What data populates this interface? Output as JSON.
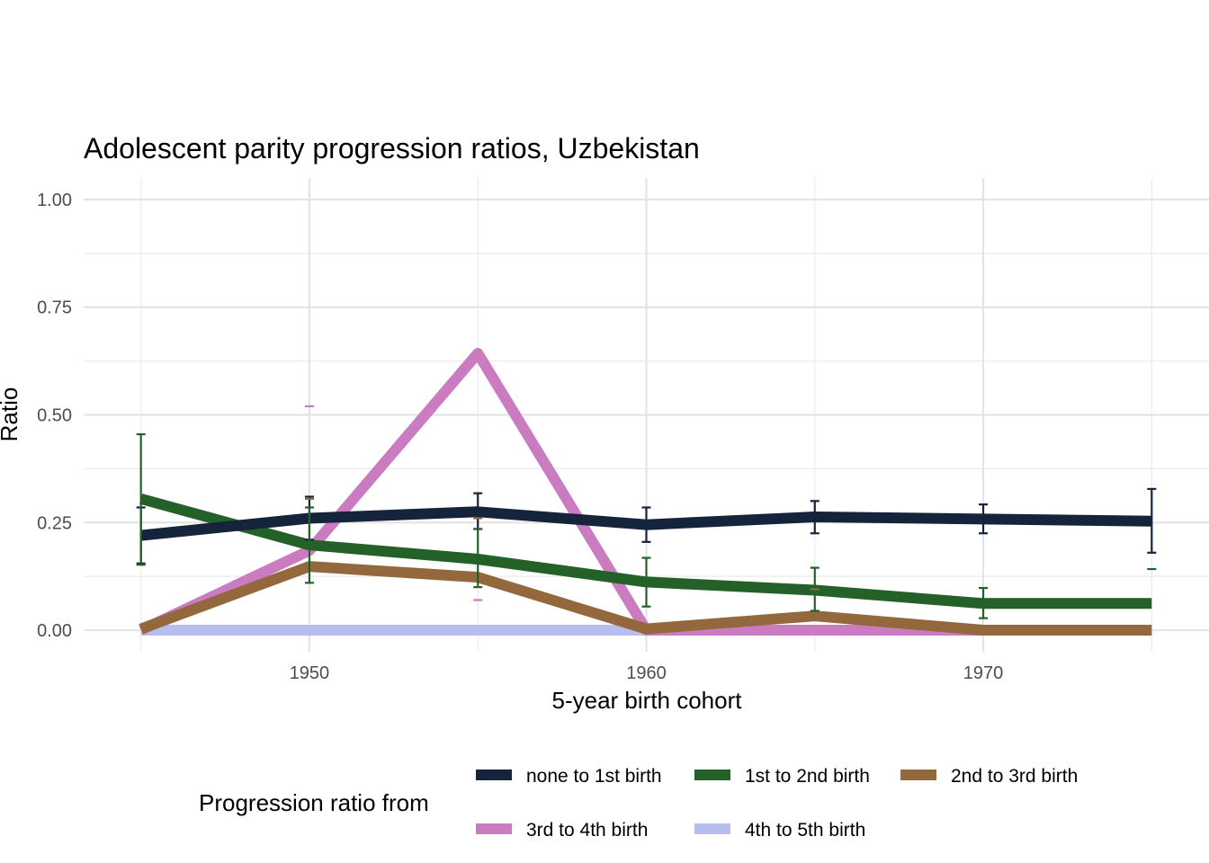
{
  "chart_data": {
    "type": "line",
    "title": "Adolescent parity progression ratios,  Uzbekistan",
    "xlabel": "5-year birth cohort",
    "ylabel": "Ratio",
    "xlim": [
      1943.3,
      1976.7
    ],
    "ylim": [
      -0.05,
      1.05
    ],
    "x_ticks": [
      1950,
      1960,
      1970
    ],
    "x_tick_labels": [
      "1950",
      "1960",
      "1970"
    ],
    "y_ticks": [
      0,
      0.25,
      0.5,
      0.75,
      1.0
    ],
    "y_tick_labels": [
      "0.00",
      "0.25",
      "0.50",
      "0.75",
      "1.00"
    ],
    "x": [
      1945,
      1950,
      1955,
      1960,
      1965,
      1970,
      1975
    ],
    "grid": true,
    "legend": {
      "title": "Progression ratio from",
      "position": "bottom"
    },
    "series": [
      {
        "name": "none to 1st birth",
        "color": "#15233b",
        "values": [
          0.22,
          0.26,
          0.275,
          0.245,
          0.263,
          0.258,
          0.253
        ],
        "lower": [
          0.155,
          0.21,
          0.235,
          0.205,
          0.225,
          0.225,
          0.18
        ],
        "upper": [
          0.285,
          0.31,
          0.318,
          0.285,
          0.3,
          0.292,
          0.328
        ]
      },
      {
        "name": "1st to 2nd birth",
        "color": "#246129",
        "values": [
          0.305,
          0.198,
          0.165,
          0.112,
          0.093,
          0.062,
          0.062
        ],
        "lower": [
          0.152,
          0.11,
          0.1,
          0.055,
          0.045,
          0.028,
          null
        ],
        "upper": [
          0.455,
          0.285,
          0.235,
          0.168,
          0.145,
          0.098,
          0.142
        ]
      },
      {
        "name": "2nd to 3rd birth",
        "color": "#93683d",
        "values": [
          0.003,
          0.148,
          0.123,
          0.003,
          0.033,
          0.0,
          0.0
        ],
        "lower": [
          null,
          null,
          null,
          null,
          null,
          null,
          null
        ],
        "upper": [
          null,
          0.305,
          0.26,
          null,
          0.095,
          null,
          null
        ]
      },
      {
        "name": "3rd to 4th birth",
        "color": "#cb7cc0",
        "values": [
          0.0,
          0.185,
          0.643,
          0.0,
          0.0,
          0.0,
          0.0
        ],
        "lower": [
          null,
          null,
          0.07,
          null,
          null,
          null,
          null
        ],
        "upper": [
          null,
          0.52,
          null,
          null,
          null,
          null,
          null
        ]
      },
      {
        "name": "4th to 5th birth",
        "color": "#b8bdf0",
        "values": [
          0.0,
          0.0,
          0.0,
          0.0,
          0.0,
          0.0,
          0.0
        ],
        "lower": [
          null,
          null,
          null,
          null,
          null,
          null,
          null
        ],
        "upper": [
          null,
          null,
          null,
          null,
          null,
          null,
          null
        ]
      }
    ]
  }
}
